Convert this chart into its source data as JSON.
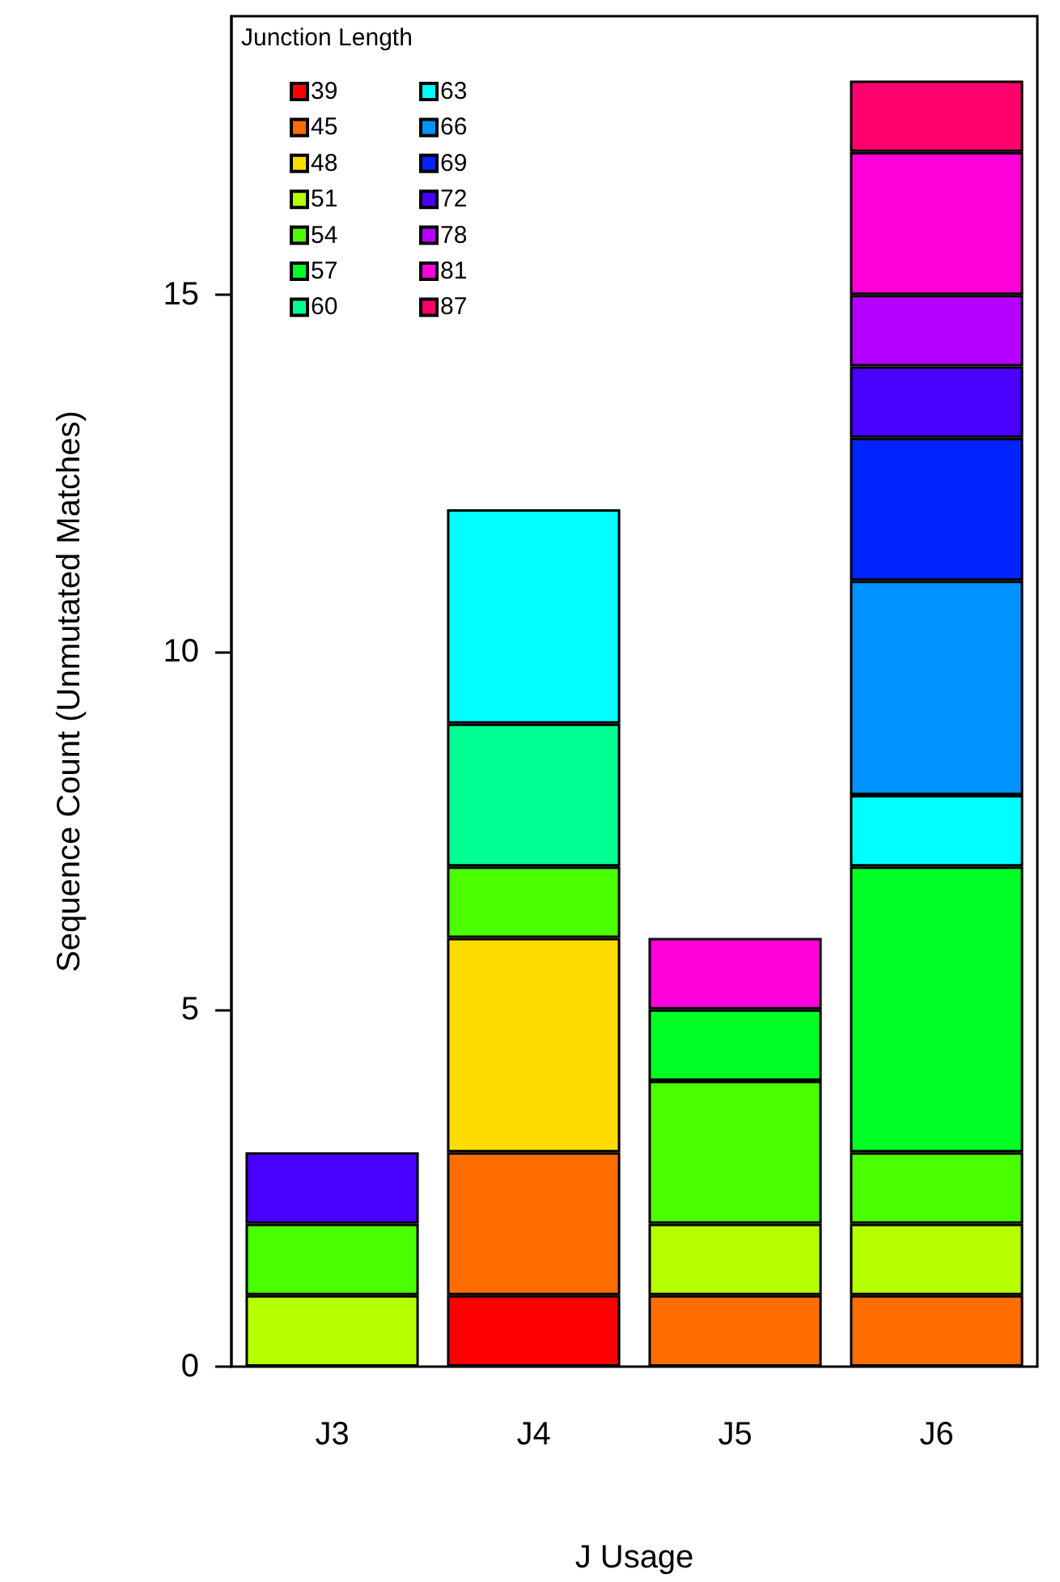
{
  "chart_data": {
    "type": "bar",
    "stacked": true,
    "xlabel": "J Usage",
    "ylabel": "Sequence Count (Unmutated Matches)",
    "legend_title": "Junction Length",
    "legend": "top left",
    "grid": false,
    "categories": [
      "J3",
      "J4",
      "J5",
      "J6"
    ],
    "ylim": [
      0,
      18.9
    ],
    "yticks": [
      0,
      5,
      10,
      15
    ],
    "series": [
      {
        "name": "39",
        "color": "#ff0000",
        "values": [
          null,
          1,
          null,
          null
        ]
      },
      {
        "name": "45",
        "color": "#ff6d00",
        "values": [
          null,
          2,
          1,
          1
        ]
      },
      {
        "name": "48",
        "color": "#ffdb00",
        "values": [
          null,
          3,
          null,
          null
        ]
      },
      {
        "name": "51",
        "color": "#b6ff00",
        "values": [
          1,
          null,
          1,
          1
        ]
      },
      {
        "name": "54",
        "color": "#49ff00",
        "values": [
          1,
          1,
          2,
          1
        ]
      },
      {
        "name": "57",
        "color": "#00ff24",
        "values": [
          null,
          null,
          1,
          4
        ]
      },
      {
        "name": "60",
        "color": "#00ff92",
        "values": [
          null,
          2,
          null,
          null
        ]
      },
      {
        "name": "63",
        "color": "#00ffff",
        "values": [
          null,
          3,
          null,
          1
        ]
      },
      {
        "name": "66",
        "color": "#0092ff",
        "values": [
          null,
          null,
          null,
          3
        ]
      },
      {
        "name": "69",
        "color": "#0024ff",
        "values": [
          null,
          null,
          null,
          2
        ]
      },
      {
        "name": "72",
        "color": "#4900ff",
        "values": [
          1,
          null,
          null,
          1
        ]
      },
      {
        "name": "78",
        "color": "#b600ff",
        "values": [
          null,
          null,
          null,
          1
        ]
      },
      {
        "name": "81",
        "color": "#ff00db",
        "values": [
          null,
          null,
          1,
          2
        ]
      },
      {
        "name": "87",
        "color": "#ff006d",
        "values": [
          null,
          null,
          null,
          1
        ]
      }
    ]
  }
}
